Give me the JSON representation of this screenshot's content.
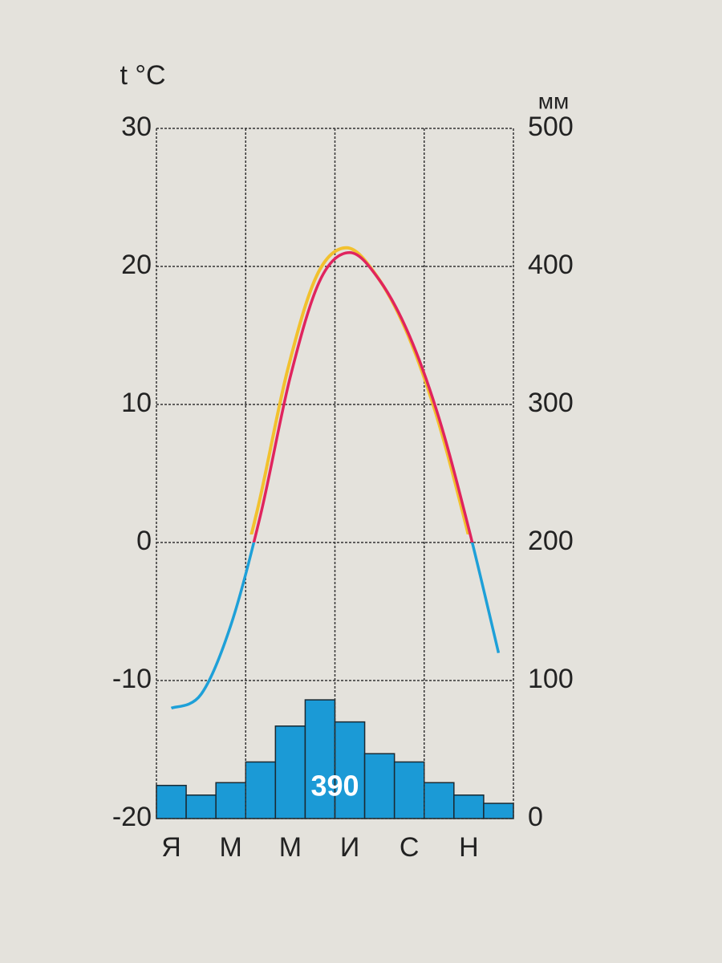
{
  "chart_data": {
    "type": "climate",
    "ylabel": "t °C",
    "y2label": "мм",
    "categories": [
      "Я",
      null,
      "М",
      null,
      "М",
      null,
      "И",
      null,
      "С",
      null,
      "Н",
      null
    ],
    "series": [
      {
        "name": "temperature",
        "kind": "line",
        "axis": "y",
        "color": "#e0245e",
        "below_zero_color": "#1ea0d8",
        "shadow_color": "#f2c12e",
        "values": [
          -12,
          -11,
          -6,
          2,
          12,
          19,
          21,
          19,
          15,
          9,
          1,
          -8
        ]
      },
      {
        "name": "precipitation",
        "kind": "bar",
        "axis": "y2",
        "color": "#1b9ad6",
        "values": [
          24,
          17,
          26,
          41,
          67,
          86,
          70,
          47,
          41,
          26,
          17,
          11
        ]
      }
    ],
    "annotation": "390",
    "ylim": [
      -20,
      30
    ],
    "yticks": [
      -20,
      -10,
      0,
      10,
      20,
      30
    ],
    "y2lim": [
      0,
      500
    ],
    "y2ticks": [
      0,
      100,
      200,
      300,
      400,
      500
    ],
    "grid": true
  }
}
